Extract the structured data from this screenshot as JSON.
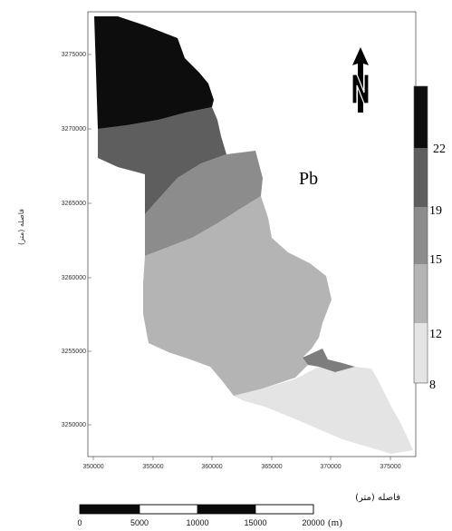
{
  "map": {
    "element_label": "Pb",
    "x_ticks": [
      "350000",
      "355000",
      "360000",
      "365000",
      "370000",
      "375000"
    ],
    "y_ticks": [
      "3275000",
      "3270000",
      "3265000",
      "3260000",
      "3255000",
      "3250000"
    ],
    "y_axis_title": "فاصله (متر)",
    "north_arrow": {
      "icon": "north-arrow-icon",
      "letter": "N"
    }
  },
  "legend": {
    "labels": [
      "22",
      "19",
      "15",
      "12",
      "8"
    ],
    "classes": [
      {
        "range": "19-22",
        "color": "#0d0d0d"
      },
      {
        "range": "15-19",
        "color": "#5e5e5e"
      },
      {
        "range": "12-15",
        "color": "#8c8c8c"
      },
      {
        "range": "8-12",
        "color": "#b4b4b4"
      },
      {
        "range": "<8",
        "color": "#e4e4e4"
      }
    ]
  },
  "scale_bar": {
    "title": "فاصله (متر)",
    "labels": [
      "0",
      "5000",
      "10000",
      "15000",
      "20000"
    ],
    "unit": "(m)"
  },
  "colors": {
    "zone_1": "#0d0d0d",
    "zone_2": "#5e5e5e",
    "zone_3": "#8c8c8c",
    "zone_4": "#b4b4b4",
    "zone_5": "#e4e4e4"
  }
}
